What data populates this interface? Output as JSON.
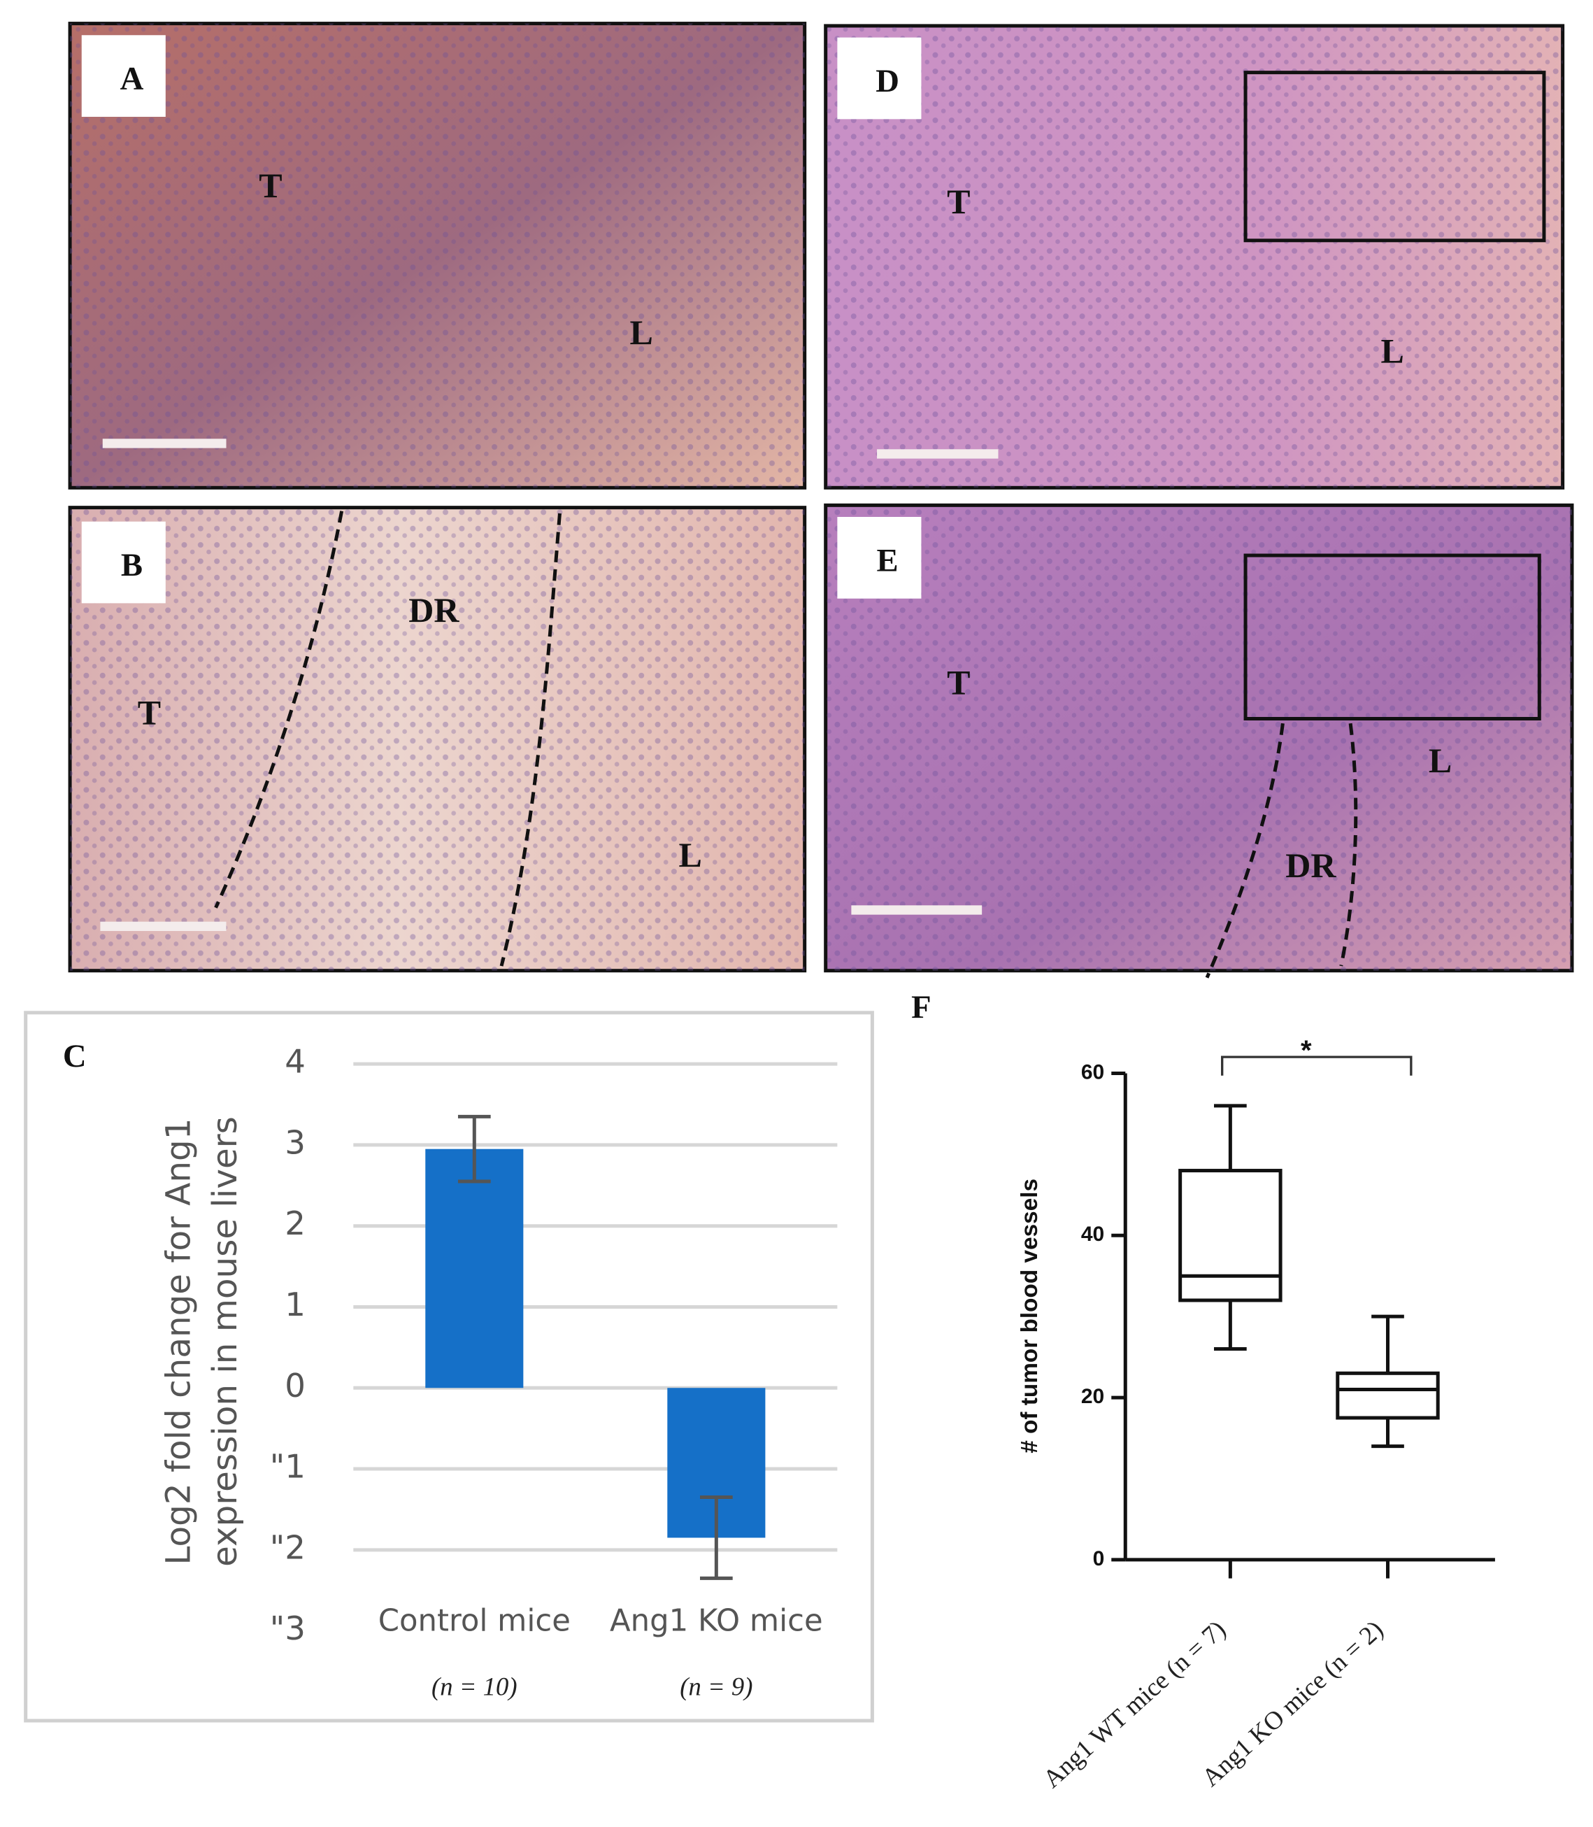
{
  "panels": [
    {
      "label": "A",
      "marks": [
        "T",
        "L"
      ]
    },
    {
      "label": "D",
      "marks": [
        "T",
        "L"
      ]
    },
    {
      "label": "B",
      "marks": [
        "T",
        "DR",
        "L"
      ]
    },
    {
      "label": "E",
      "marks": [
        "T",
        "L",
        "DR"
      ]
    }
  ],
  "chart_data": [
    {
      "type": "bar",
      "label": "C",
      "ylabel": [
        "Log2 fold change for Ang1",
        "expression in mouse livers"
      ],
      "categories": [
        "Control mice",
        "Ang1 KO mice"
      ],
      "sublabels": [
        "(n = 10)",
        "(n = 9)"
      ],
      "values": [
        2.95,
        -1.85
      ],
      "errors": [
        0.4,
        0.5
      ],
      "color": "#1570c8",
      "ylim": [
        -3,
        4
      ],
      "yticks": [
        4,
        3,
        2,
        1,
        0,
        {
          "value": -1,
          "label": "\"1"
        },
        {
          "value": -2,
          "label": "\"2"
        },
        {
          "value": -3,
          "label": "\"3"
        }
      ],
      "grid": true
    },
    {
      "type": "box",
      "label": "F",
      "ylabel": "# of tumor blood vessels",
      "categories": [
        "Ang1 WT mice (n = 7)",
        "Ang1 KO mice (n = 2)"
      ],
      "min": [
        26,
        14
      ],
      "q1": [
        32,
        17.5
      ],
      "median": [
        35,
        21
      ],
      "q3": [
        48,
        23
      ],
      "max": [
        56,
        30
      ],
      "annotation": "*",
      "color": "#111111",
      "ylim": [
        0,
        60
      ],
      "yticks": [
        0,
        20,
        40,
        60
      ],
      "grid": false
    }
  ]
}
